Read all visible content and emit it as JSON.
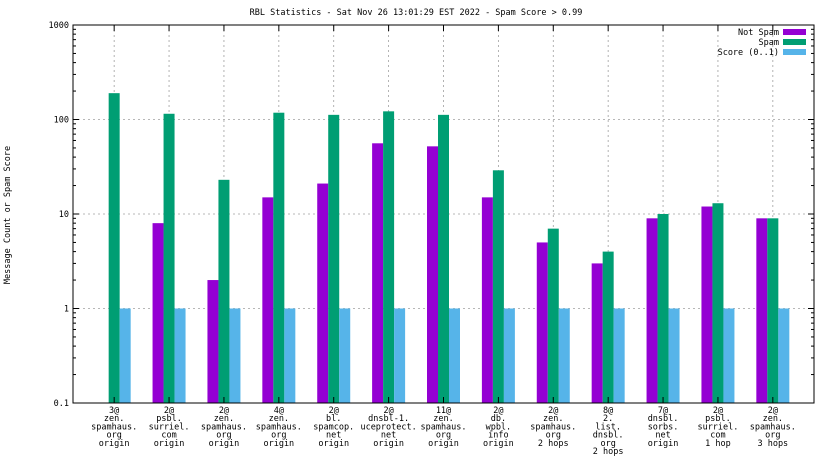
{
  "chart_data": {
    "type": "bar",
    "title": "RBL Statistics - Sat Nov 26 13:01:29 EST 2022 - Spam Score > 0.99",
    "xlabel": "",
    "ylabel": "Message Count or Spam Score",
    "yscale": "log",
    "ylim": [
      0.1,
      1000
    ],
    "yticks": [
      "0.1",
      "1",
      "10",
      "100",
      "1000"
    ],
    "grid": true,
    "legend_position": "top-right",
    "categories": [
      [
        "3@",
        "zen.",
        "spamhaus.",
        "org",
        "origin"
      ],
      [
        "2@",
        "psbl.",
        "surriel.",
        "com",
        "origin"
      ],
      [
        "2@",
        "zen.",
        "spamhaus.",
        "org",
        "origin"
      ],
      [
        "4@",
        "zen.",
        "spamhaus.",
        "org",
        "origin"
      ],
      [
        "2@",
        "bl.",
        "spamcop.",
        "net",
        "origin"
      ],
      [
        "2@",
        "dnsbl-1.",
        "uceprotect.",
        "net",
        "origin"
      ],
      [
        "11@",
        "zen.",
        "spamhaus.",
        "org",
        "origin"
      ],
      [
        "2@",
        "db.",
        "wpbl.",
        "info",
        "origin"
      ],
      [
        "2@",
        "zen.",
        "spamhaus.",
        "org",
        "2 hops"
      ],
      [
        "8@",
        "2.",
        "list.",
        "dnsbl.",
        "org",
        "2 hops"
      ],
      [
        "7@",
        "dnsbl.",
        "sorbs.",
        "net",
        "origin"
      ],
      [
        "2@",
        "psbl.",
        "surriel.",
        "com",
        "1 hop"
      ],
      [
        "2@",
        "zen.",
        "spamhaus.",
        "org",
        "3 hops"
      ]
    ],
    "series": [
      {
        "name": "Not Spam",
        "color": "#9400d3",
        "values": [
          0,
          8,
          2,
          15,
          21,
          56,
          52,
          15,
          5,
          3,
          9,
          12,
          9
        ]
      },
      {
        "name": "Spam",
        "color": "#009e73",
        "values": [
          190,
          115,
          23,
          118,
          112,
          122,
          112,
          29,
          7,
          4,
          10,
          13,
          9
        ]
      },
      {
        "name": "Score (0..1)",
        "color": "#56b4e9",
        "values": [
          1,
          1,
          1,
          1,
          1,
          1,
          1,
          1,
          1,
          1,
          1,
          1,
          1
        ]
      }
    ]
  }
}
